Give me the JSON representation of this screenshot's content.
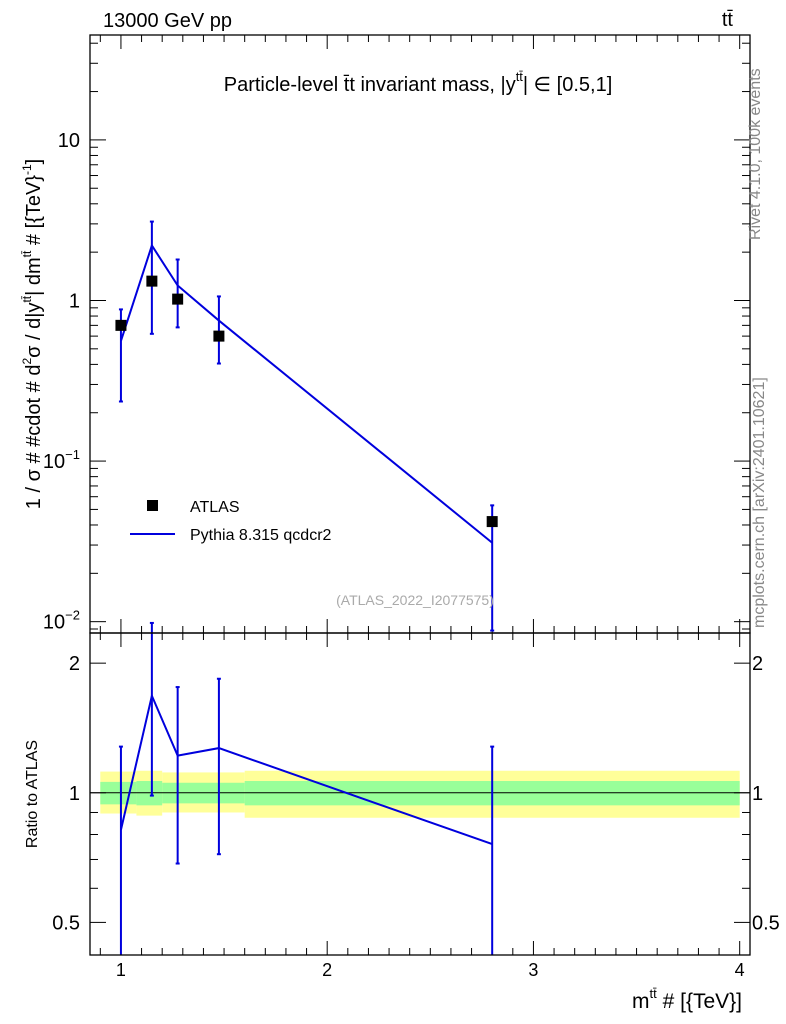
{
  "header": {
    "energy_label": "13000 GeV pp",
    "process_label": "tt̄"
  },
  "side_labels": {
    "rivet": "Rivet 4.1.0,  100k events",
    "mcplots": "mcplots.cern.ch [arXiv:2401.10621]"
  },
  "chart_data": [
    {
      "type": "scatter",
      "panel": "main",
      "title": "Particle-level t̄t invariant mass, |y^{tt̄}| ∈ [0.5,1]",
      "title_parts": {
        "main": "Particle-level t̄t invariant mass, |y",
        "sup": "tt̄",
        "rest": "| ∈ [0.5,1]"
      },
      "ylabel": "1 / σ # #cdot # d²σ / d|y^{tt̄}| dm^{tt̄} # [{TeV}⁻¹]",
      "ylabel_parts": {
        "a": "1 / σ # #cdot # d",
        "a_sup": "2",
        "b": "σ / d|y",
        "b_sup": "tt̄",
        "c": "| dm",
        "c_sup": "tt̄",
        "d": " # [{TeV}",
        "d_sup": "-1",
        "e": "]"
      },
      "yscale": "log",
      "ylim": [
        0.0085,
        45
      ],
      "xlim": [
        0.85,
        4.05
      ],
      "y_ticks": [
        {
          "value": 0.01,
          "base": "10",
          "exp": "−2"
        },
        {
          "value": 0.1,
          "base": "10",
          "exp": "−1"
        },
        {
          "value": 1,
          "base": "1",
          "exp": ""
        },
        {
          "value": 10,
          "base": "10",
          "exp": ""
        }
      ],
      "watermark": "(ATLAS_2022_I2077575)",
      "legend_position": "middle-left",
      "series": [
        {
          "name": "ATLAS",
          "marker": "square",
          "color": "#000000",
          "x": [
            1.0,
            1.15,
            1.275,
            1.475,
            2.8
          ],
          "y": [
            0.7,
            1.32,
            1.02,
            0.6,
            0.042
          ]
        },
        {
          "name": "Pythia 8.315 qcdcr2",
          "marker": "line",
          "color": "#0000dd",
          "x": [
            1.0,
            1.15,
            1.275,
            1.475,
            2.8
          ],
          "y": [
            0.56,
            2.2,
            1.24,
            0.75,
            0.031
          ],
          "yerr_low": [
            0.235,
            0.62,
            0.68,
            0.405,
            0.0088
          ],
          "yerr_high": [
            0.88,
            3.1,
            1.8,
            1.06,
            0.053
          ]
        }
      ]
    },
    {
      "type": "line",
      "panel": "ratio",
      "ylabel": "Ratio to ATLAS",
      "xlabel_parts": {
        "a": "m",
        "sup": "tt̄",
        "b": " # [{TeV}]"
      },
      "xlabel": "m^{tt̄} # [{TeV}]",
      "yscale": "log",
      "ylim": [
        0.42,
        2.35
      ],
      "xlim": [
        0.85,
        4.05
      ],
      "x_ticks": [
        "1",
        "2",
        "3",
        "4"
      ],
      "x_tick_values": [
        1,
        2,
        3,
        4
      ],
      "y_ticks": [
        "0.5",
        "1",
        "2"
      ],
      "y_tick_values": [
        0.5,
        1,
        2
      ],
      "bands": [
        {
          "x0": 0.9,
          "x1": 1.075,
          "yellow": [
            0.895,
            1.12
          ],
          "green": [
            0.94,
            1.06
          ]
        },
        {
          "x0": 1.075,
          "x1": 1.2,
          "yellow": [
            0.885,
            1.125
          ],
          "green": [
            0.935,
            1.065
          ]
        },
        {
          "x0": 1.2,
          "x1": 1.6,
          "yellow": [
            0.9,
            1.115
          ],
          "green": [
            0.945,
            1.055
          ]
        },
        {
          "x0": 1.6,
          "x1": 4.0,
          "yellow": [
            0.875,
            1.125
          ],
          "green": [
            0.935,
            1.065
          ]
        }
      ],
      "band_colors": {
        "yellow": "#ffff99",
        "green": "#99ff99"
      },
      "series": [
        {
          "name": "Pythia 8.315 qcdcr2 / ATLAS",
          "color": "#0000dd",
          "x": [
            1.0,
            1.15,
            1.275,
            1.475,
            2.8
          ],
          "y": [
            0.82,
            1.68,
            1.22,
            1.27,
            0.76
          ],
          "yerr_low": [
            0.3,
            0.985,
            0.685,
            0.72,
            0.3
          ],
          "yerr_high": [
            1.28,
            2.48,
            1.76,
            1.84,
            1.28
          ]
        }
      ]
    }
  ]
}
